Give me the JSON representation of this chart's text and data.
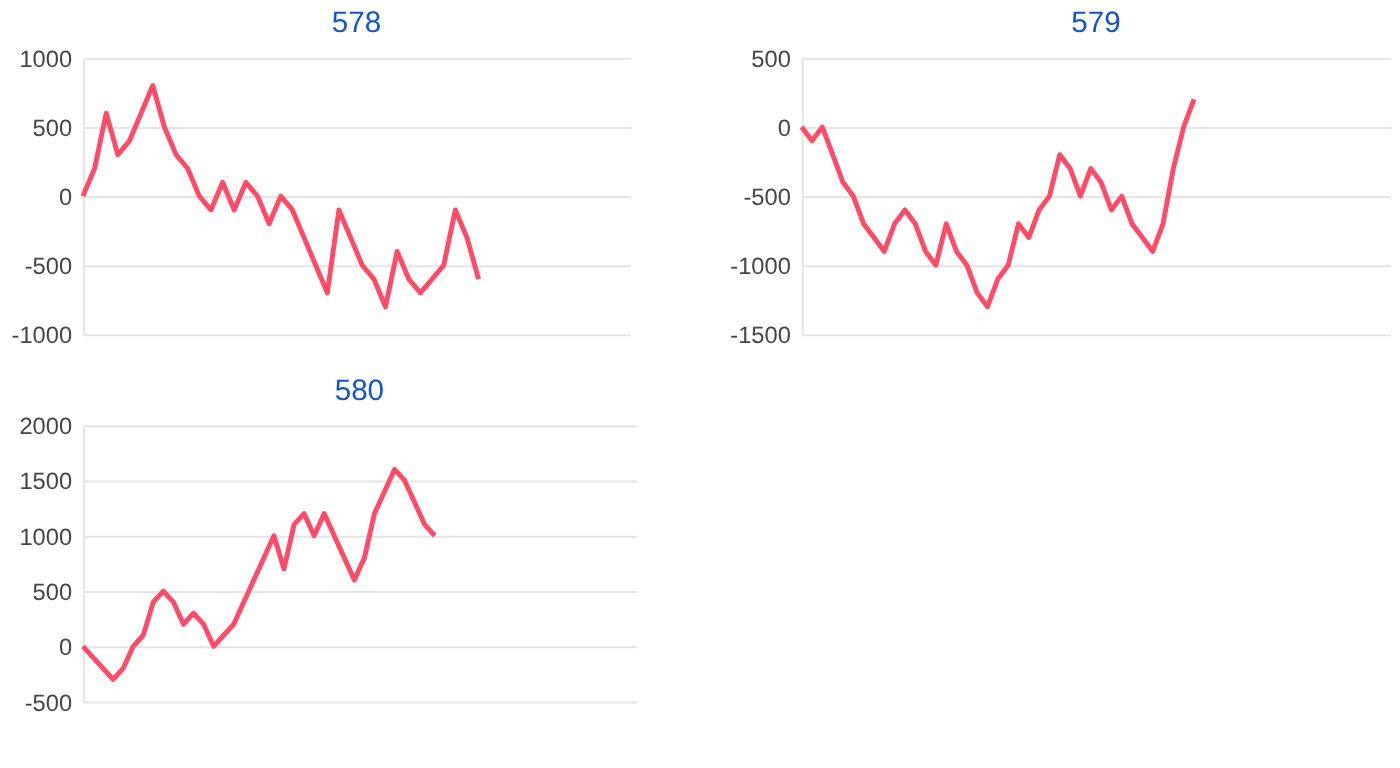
{
  "chart_data": [
    {
      "type": "line",
      "title": "578",
      "categories": [
        null,
        null,
        null,
        null,
        null,
        null,
        null,
        null,
        null,
        null,
        null,
        null,
        null,
        null,
        null,
        null,
        null,
        null,
        null,
        null,
        null,
        null,
        null,
        null,
        null,
        null,
        null,
        null,
        null,
        null,
        null,
        null,
        null,
        null,
        null,
        null,
        null,
        null,
        null,
        null,
        null,
        null,
        null,
        null,
        null,
        null,
        null,
        null
      ],
      "series": [
        {
          "color": "#ff4a68",
          "values": [
            0,
            200,
            600,
            300,
            400,
            600,
            800,
            500,
            300,
            200,
            0,
            -100,
            100,
            -100,
            100,
            0,
            -200,
            0,
            -100,
            -300,
            -500,
            -700,
            -100,
            -300,
            -500,
            -600,
            -800,
            -400,
            -600,
            -700,
            -600,
            -500,
            -100,
            -300,
            -600,
            null,
            null,
            null,
            null,
            null,
            null,
            null,
            null,
            null,
            null,
            null,
            null,
            null
          ]
        }
      ],
      "ylim": [
        -1000,
        1000
      ],
      "yticks": [
        -1000,
        -500,
        0,
        500,
        1000
      ],
      "grid": "y",
      "tick_labels": "y"
    },
    {
      "type": "line",
      "title": "579",
      "categories": [
        null,
        null,
        null,
        null,
        null,
        null,
        null,
        null,
        null,
        null,
        null,
        null,
        null,
        null,
        null,
        null,
        null,
        null,
        null,
        null,
        null,
        null,
        null,
        null,
        null,
        null,
        null,
        null,
        null,
        null,
        null,
        null,
        null,
        null,
        null,
        null,
        null,
        null,
        null,
        null,
        null,
        null,
        null,
        null,
        null,
        null,
        null,
        null,
        null,
        null,
        null,
        null,
        null,
        null,
        null,
        null,
        null,
        null
      ],
      "series": [
        {
          "color": "#ff4a68",
          "values": [
            0,
            -100,
            0,
            -200,
            -400,
            -500,
            -700,
            -800,
            -900,
            -700,
            -600,
            -700,
            -900,
            -1000,
            -700,
            -900,
            -1000,
            -1200,
            -1300,
            -1100,
            -1000,
            -700,
            -800,
            -600,
            -500,
            -200,
            -300,
            -500,
            -300,
            -400,
            -600,
            -500,
            -700,
            -800,
            -900,
            -700,
            -300,
            0,
            200,
            null,
            null,
            null,
            null,
            null,
            null,
            null,
            null,
            null,
            null,
            null,
            null,
            null,
            null,
            null,
            null,
            null,
            null,
            null
          ]
        }
      ],
      "ylim": [
        -1500,
        500
      ],
      "yticks": [
        -1500,
        -1000,
        -500,
        0,
        500
      ],
      "grid": "y",
      "tick_labels": "y"
    },
    {
      "type": "line",
      "title": "580",
      "categories": [
        null,
        null,
        null,
        null,
        null,
        null,
        null,
        null,
        null,
        null,
        null,
        null,
        null,
        null,
        null,
        null,
        null,
        null,
        null,
        null,
        null,
        null,
        null,
        null,
        null,
        null,
        null,
        null,
        null,
        null,
        null,
        null,
        null,
        null,
        null,
        null,
        null,
        null,
        null,
        null,
        null,
        null,
        null,
        null,
        null,
        null,
        null,
        null,
        null,
        null,
        null,
        null,
        null,
        null,
        null,
        null
      ],
      "series": [
        {
          "color": "#ff4a68",
          "values": [
            0,
            -100,
            -200,
            -300,
            -200,
            0,
            100,
            400,
            500,
            400,
            200,
            300,
            200,
            0,
            100,
            200,
            400,
            600,
            800,
            1000,
            700,
            1100,
            1200,
            1000,
            1200,
            1000,
            800,
            600,
            800,
            1200,
            1400,
            1600,
            1500,
            1300,
            1100,
            1000,
            null,
            null,
            null,
            null,
            null,
            null,
            null,
            null,
            null,
            null,
            null,
            null,
            null,
            null,
            null,
            null,
            null,
            null,
            null,
            null
          ]
        }
      ],
      "ylim": [
        -500,
        2000
      ],
      "yticks": [
        -500,
        0,
        500,
        1000,
        1500,
        2000
      ],
      "grid": "y",
      "tick_labels": "y"
    }
  ]
}
